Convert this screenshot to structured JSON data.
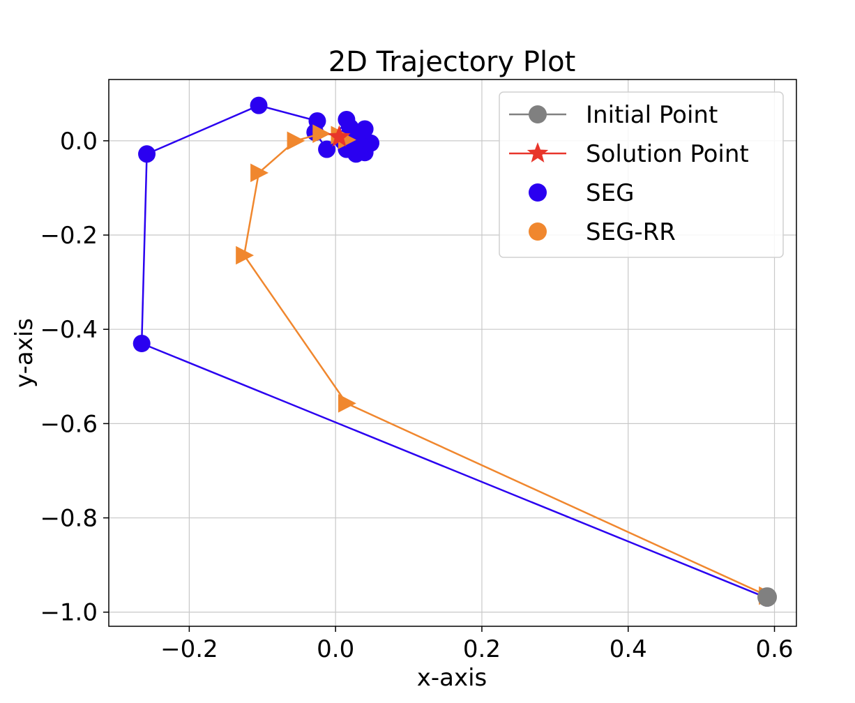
{
  "chart_data": {
    "type": "line",
    "title": "2D Trajectory Plot",
    "xlabel": "x-axis",
    "ylabel": "y-axis",
    "xlim": [
      -0.31,
      0.63
    ],
    "ylim": [
      -1.03,
      0.13
    ],
    "xticks": [
      -0.2,
      0.0,
      0.2,
      0.4,
      0.6
    ],
    "yticks": [
      0.0,
      -0.2,
      -0.4,
      -0.6,
      -0.8,
      -1.0
    ],
    "xtick_labels": [
      "−0.2",
      "0.0",
      "0.2",
      "0.4",
      "0.6"
    ],
    "ytick_labels": [
      "0.0",
      "−0.2",
      "−0.4",
      "−0.6",
      "−0.8",
      "−1.0"
    ],
    "grid": true,
    "legend_position": "top-right",
    "legend": [
      {
        "label": "Initial Point",
        "marker": "circle",
        "line": true,
        "color": "#808080"
      },
      {
        "label": "Solution Point",
        "marker": "star",
        "line": true,
        "color": "#e8352a"
      },
      {
        "label": "SEG",
        "marker": "circle",
        "line": false,
        "color": "#2a00f0"
      },
      {
        "label": "SEG-RR",
        "marker": "circle",
        "line": false,
        "color": "#f0872e"
      }
    ],
    "series": [
      {
        "name": "SEG",
        "color": "#2a00f0",
        "marker": "circle",
        "points": [
          [
            0.59,
            -0.97
          ],
          [
            -0.265,
            -0.43
          ],
          [
            -0.258,
            -0.028
          ],
          [
            -0.105,
            0.075
          ],
          [
            -0.025,
            0.042
          ],
          [
            -0.028,
            0.018
          ],
          [
            -0.012,
            -0.018
          ],
          [
            0.015,
            0.045
          ],
          [
            0.04,
            0.025
          ],
          [
            0.048,
            -0.005
          ],
          [
            0.04,
            -0.025
          ],
          [
            0.028,
            -0.028
          ],
          [
            0.015,
            -0.018
          ],
          [
            0.01,
            0.0
          ],
          [
            0.02,
            0.028
          ],
          [
            0.035,
            0.018
          ],
          [
            0.035,
            -0.01
          ],
          [
            0.022,
            -0.015
          ],
          [
            0.012,
            0.005
          ],
          [
            0.025,
            0.015
          ],
          [
            0.03,
            0.0
          ],
          [
            0.018,
            -0.005
          ]
        ]
      },
      {
        "name": "SEG-RR",
        "color": "#f0872e",
        "marker": "triangle-right",
        "points": [
          [
            0.59,
            -0.965
          ],
          [
            0.015,
            -0.557
          ],
          [
            -0.125,
            -0.243
          ],
          [
            -0.105,
            -0.068
          ],
          [
            -0.055,
            0.0
          ],
          [
            -0.02,
            0.015
          ],
          [
            0.005,
            0.012
          ],
          [
            0.015,
            0.002
          ]
        ]
      }
    ],
    "initial_point": {
      "x": 0.59,
      "y": -0.968,
      "color": "#808080"
    },
    "solution_point": {
      "x": 0.005,
      "y": 0.008,
      "color": "#e8352a"
    }
  }
}
